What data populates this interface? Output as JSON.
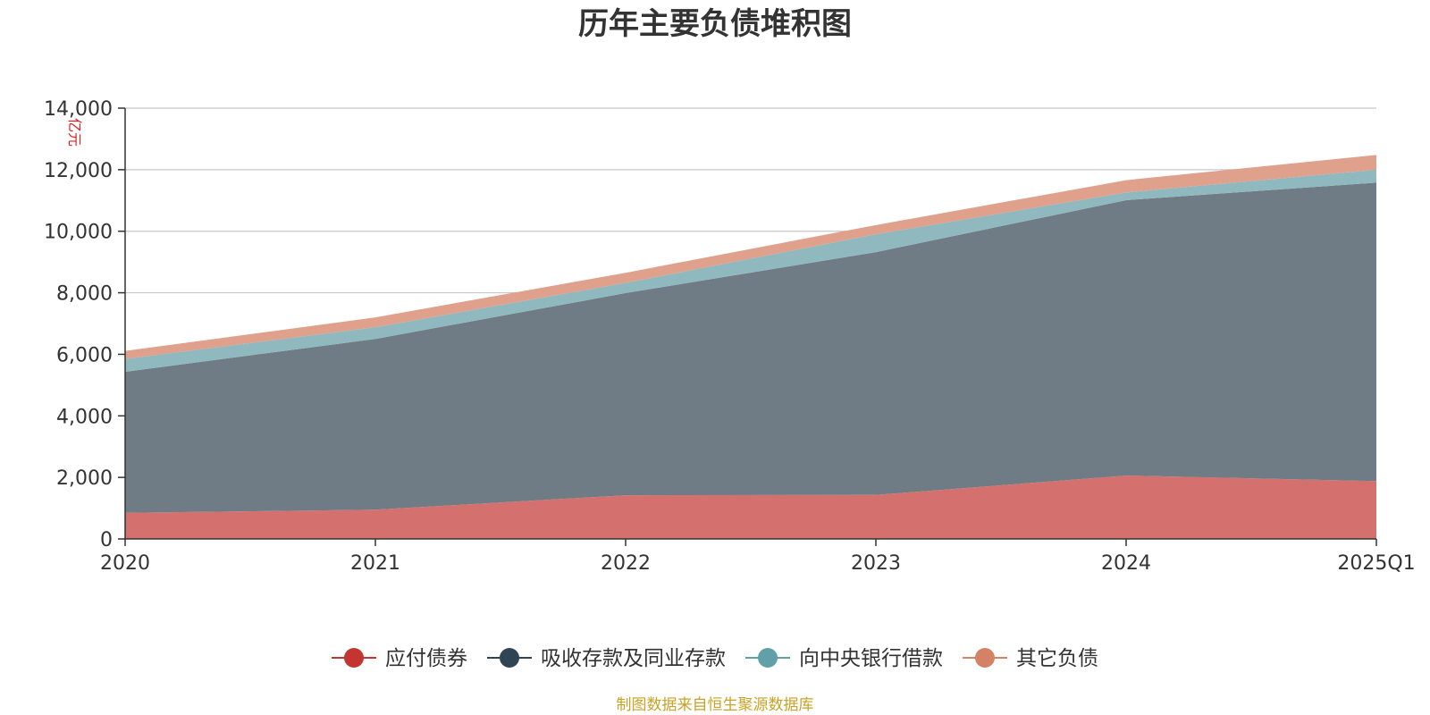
{
  "chart_data": {
    "type": "area",
    "stacked": true,
    "title": "历年主要负债堆积图",
    "unit_label": "亿元",
    "categories": [
      "2020",
      "2021",
      "2022",
      "2023",
      "2024",
      "2025Q1"
    ],
    "ylim": [
      0,
      14000
    ],
    "yticks": [
      "0",
      "2,000",
      "4,000",
      "6,000",
      "8,000",
      "10,000",
      "12,000",
      "14,000"
    ],
    "ytick_values": [
      0,
      2000,
      4000,
      6000,
      8000,
      10000,
      12000,
      14000
    ],
    "grid": true,
    "legend_position": "bottom",
    "series": [
      {
        "name": "应付债券",
        "values": [
          850,
          950,
          1420,
          1430,
          2060,
          1880
        ],
        "color": "#d4716e",
        "legend_color": "#c23531"
      },
      {
        "name": "吸收存款及同业存款",
        "values": [
          4580,
          5550,
          6570,
          7890,
          8950,
          9700
        ],
        "color": "#6f7b85",
        "legend_color": "#2f4554"
      },
      {
        "name": "向中央银行借款",
        "values": [
          420,
          380,
          330,
          580,
          250,
          420
        ],
        "color": "#8fb9be",
        "legend_color": "#61a0a8"
      },
      {
        "name": "其它负债",
        "values": [
          260,
          320,
          330,
          300,
          400,
          480
        ],
        "color": "#dfa08c",
        "legend_color": "#d48265"
      }
    ]
  },
  "footer": {
    "source": "制图数据来自恒生聚源数据库"
  }
}
